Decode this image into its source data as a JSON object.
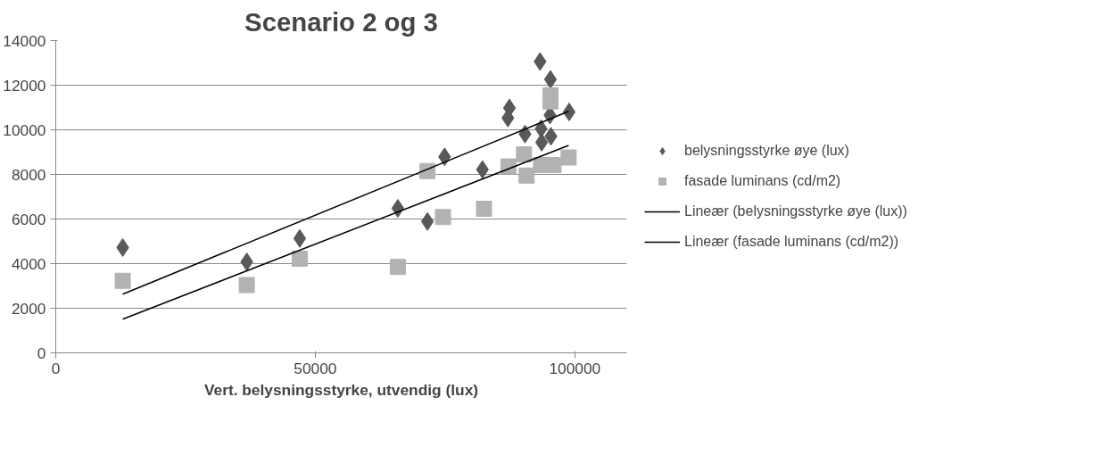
{
  "chart_data": {
    "type": "scatter",
    "title": "Scenario 2 og 3",
    "xlabel": "Vert. belysningsstyrke, utvendig (lux)",
    "xlim": [
      0,
      110000
    ],
    "xticks": [
      0,
      50000,
      100000
    ],
    "ylim": [
      0,
      14000
    ],
    "yticks": [
      0,
      2000,
      4000,
      6000,
      8000,
      10000,
      12000,
      14000
    ],
    "grid": "y",
    "legend": "right",
    "series": [
      {
        "name": "belysningsstyrke øye (lux)",
        "color": "#595959",
        "marker": "diamond",
        "x": [
          12900,
          36800,
          47000,
          65900,
          71600,
          74900,
          82200,
          93300,
          95300,
          87400,
          87100,
          98900,
          95200,
          90400,
          93500,
          95400,
          93600
        ],
        "values": [
          4720,
          4080,
          5130,
          6480,
          5890,
          8790,
          8220,
          13060,
          12260,
          10980,
          10530,
          10800,
          10660,
          9810,
          10050,
          9710,
          9440
        ]
      },
      {
        "name": "fasade luminans (cd/m2)",
        "color": "#b2b2b2",
        "marker": "square",
        "x": [
          12900,
          36800,
          47000,
          65900,
          71600,
          74600,
          82500,
          87200,
          90200,
          90700,
          93500,
          95900,
          98800,
          95300,
          95300
        ],
        "values": [
          3230,
          3040,
          4220,
          3850,
          8150,
          6090,
          6460,
          8360,
          8900,
          7950,
          8420,
          8420,
          8760,
          11550,
          11270
        ]
      },
      {
        "name": "Lineær (belysningsstyrke øye (lux))",
        "type": "line",
        "color": "#000000",
        "marker": "none",
        "x": [
          12900,
          98800
        ],
        "values": [
          2630,
          10830
        ]
      },
      {
        "name": "Lineær (fasade luminans (cd/m2))",
        "type": "line",
        "color": "#000000",
        "marker": "none",
        "x": [
          12900,
          98800
        ],
        "values": [
          1510,
          9300
        ]
      }
    ]
  }
}
